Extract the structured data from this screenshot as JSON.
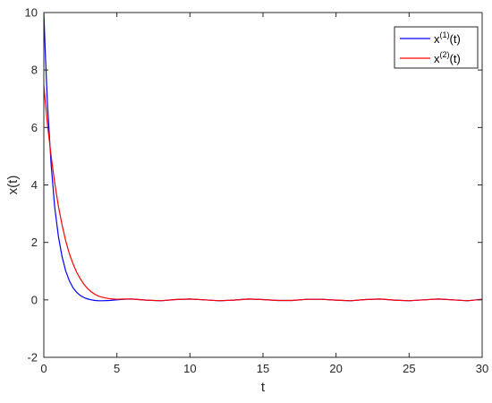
{
  "chart_data": {
    "type": "line",
    "xlabel": "t",
    "ylabel": "x(t)",
    "xlim": [
      0,
      30
    ],
    "ylim": [
      -2,
      10
    ],
    "xticks": [
      0,
      5,
      10,
      15,
      20,
      25,
      30
    ],
    "yticks": [
      -2,
      0,
      2,
      4,
      6,
      8,
      10
    ],
    "xtick_labels": [
      "0",
      "5",
      "10",
      "15",
      "20",
      "25",
      "30"
    ],
    "ytick_labels": [
      "-2",
      "0",
      "2",
      "4",
      "6",
      "8",
      "10"
    ],
    "grid": false,
    "legend_position": "top-right",
    "series": [
      {
        "name": "x(1)(t)",
        "name_base": "x",
        "name_sup": "(1)",
        "name_tail": "(t)",
        "color": "#0000ff",
        "x": [
          0,
          0.1,
          0.25,
          0.5,
          0.75,
          1.0,
          1.25,
          1.5,
          1.75,
          2.0,
          2.25,
          2.5,
          2.75,
          3.0,
          3.25,
          3.5,
          3.75,
          4.0,
          4.5,
          5.0,
          5.5,
          6.0,
          7.0,
          8.0,
          9.0,
          10.0,
          11.0,
          12.0,
          13.0,
          14.0,
          15.0,
          16.0,
          17.0,
          18.0,
          19.0,
          20.0,
          21.0,
          22.0,
          23.0,
          24.0,
          25.0,
          26.0,
          27.0,
          28.0,
          29.0,
          30.0
        ],
        "y": [
          10.0,
          8.6,
          6.8,
          4.7,
          3.2,
          2.2,
          1.5,
          1.0,
          0.66,
          0.42,
          0.26,
          0.15,
          0.08,
          0.03,
          0.0,
          -0.02,
          -0.03,
          -0.03,
          -0.02,
          0.0,
          0.02,
          0.03,
          -0.01,
          -0.03,
          0.01,
          0.03,
          0.0,
          -0.03,
          -0.01,
          0.03,
          0.01,
          -0.02,
          -0.02,
          0.02,
          0.02,
          -0.01,
          -0.03,
          0.01,
          0.03,
          -0.01,
          -0.03,
          0.0,
          0.03,
          0.0,
          -0.03,
          0.02
        ]
      },
      {
        "name": "x(2)(t)",
        "name_base": "x",
        "name_sup": "(2)",
        "name_tail": "(t)",
        "color": "#ff0000",
        "x": [
          0,
          0.1,
          0.25,
          0.5,
          0.75,
          1.0,
          1.25,
          1.5,
          1.75,
          2.0,
          2.25,
          2.5,
          2.75,
          3.0,
          3.25,
          3.5,
          3.75,
          4.0,
          4.5,
          5.0,
          5.5,
          6.0,
          7.0,
          8.0,
          9.0,
          10.0,
          11.0,
          12.0,
          13.0,
          14.0,
          15.0,
          16.0,
          17.0,
          18.0,
          19.0,
          20.0,
          21.0,
          22.0,
          23.0,
          24.0,
          25.0,
          26.0,
          27.0,
          28.0,
          29.0,
          30.0
        ],
        "y": [
          7.5,
          6.9,
          6.1,
          5.0,
          4.05,
          3.25,
          2.6,
          2.05,
          1.6,
          1.25,
          0.96,
          0.73,
          0.54,
          0.39,
          0.28,
          0.19,
          0.13,
          0.09,
          0.04,
          0.02,
          0.03,
          0.03,
          -0.01,
          -0.03,
          0.01,
          0.03,
          0.0,
          -0.03,
          -0.01,
          0.03,
          0.01,
          -0.02,
          -0.02,
          0.02,
          0.02,
          -0.01,
          -0.03,
          0.01,
          0.03,
          -0.01,
          -0.03,
          0.0,
          0.03,
          0.0,
          -0.03,
          0.02
        ]
      }
    ]
  }
}
